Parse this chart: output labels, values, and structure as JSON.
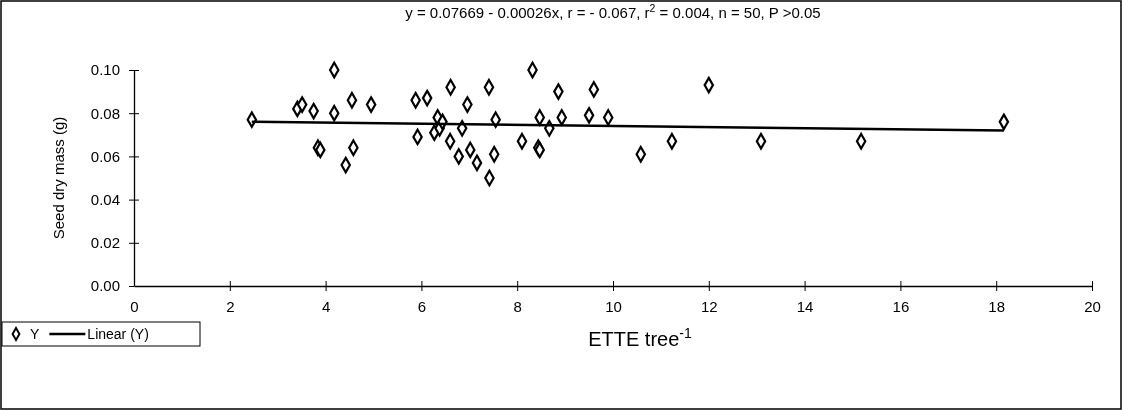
{
  "chart_data": {
    "type": "scatter",
    "title": "y = 0.07669 - 0.00026x, r = - 0.067, r$^{2}$ = 0.004,  n = 50,  P >0.05",
    "xlabel": "ETTE tree$^{-1}$",
    "ylabel": "Seed dry mass (g)",
    "xlim": [
      0,
      20
    ],
    "xticks": [
      0,
      2,
      4,
      6,
      8,
      10,
      12,
      14,
      16,
      18,
      20
    ],
    "ylim": [
      0,
      0.1
    ],
    "yticks": [
      {
        "value": 0,
        "label": "0.00"
      },
      {
        "value": 0.02,
        "label": "0.02"
      },
      {
        "value": 0.04,
        "label": "0.04"
      },
      {
        "value": 0.06,
        "label": "0.06"
      },
      {
        "value": 0.08,
        "label": "0.08"
      },
      {
        "value": 0.1,
        "label": "0.10"
      }
    ],
    "grid": false,
    "legend": "bottom left",
    "series": [
      {
        "name": "Y",
        "marker": "diamond",
        "color": "#000000",
        "x": [
          2.46,
          3.41,
          3.51,
          3.75,
          4.18,
          4.18,
          4.55,
          4.95,
          3.84,
          3.89,
          4.58,
          4.42,
          5.88,
          6.12,
          6.61,
          6.96,
          7.41,
          6.34,
          6.27,
          6.38,
          6.44,
          6.85,
          7.55,
          5.92,
          6.6,
          7.02,
          6.78,
          7.16,
          7.52,
          7.42,
          8.32,
          8.86,
          9.6,
          12.0,
          8.47,
          8.67,
          8.93,
          9.5,
          9.9,
          8.1,
          8.44,
          8.47,
          10.58,
          11.23,
          13.09,
          15.18,
          18.16
        ],
        "values": [
          0.077,
          0.082,
          0.084,
          0.081,
          0.1,
          0.08,
          0.086,
          0.084,
          0.064,
          0.063,
          0.064,
          0.056,
          0.086,
          0.087,
          0.092,
          0.084,
          0.092,
          0.078,
          0.071,
          0.073,
          0.076,
          0.073,
          0.077,
          0.069,
          0.067,
          0.063,
          0.06,
          0.057,
          0.061,
          0.05,
          0.1,
          0.09,
          0.091,
          0.093,
          0.078,
          0.073,
          0.078,
          0.079,
          0.078,
          0.067,
          0.064,
          0.063,
          0.061,
          0.067,
          0.067,
          0.067,
          0.076
        ]
      },
      {
        "name": "Linear (Y)",
        "type": "line",
        "color": "#000000",
        "line_style": "solid",
        "x": [
          2.46,
          18.16
        ],
        "values": [
          0.076,
          0.072
        ]
      }
    ]
  }
}
